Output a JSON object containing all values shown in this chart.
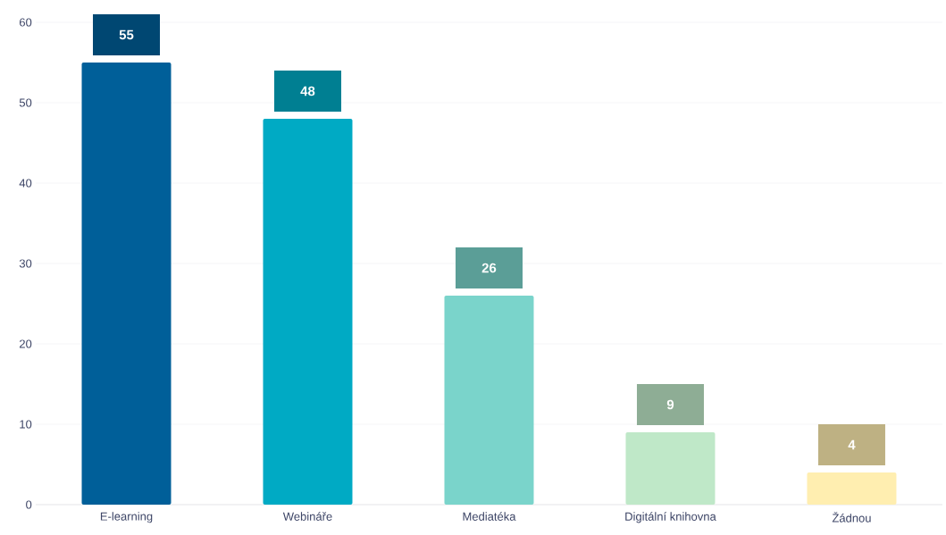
{
  "chart_data": {
    "type": "bar",
    "categories": [
      "E-learning",
      "Webináře",
      "Mediatéka",
      "Digitální knihovna",
      "Žádnou"
    ],
    "values": [
      55,
      48,
      26,
      9,
      4
    ],
    "colors": [
      "#005f99",
      "#00aac4",
      "#7ad4cb",
      "#bfe8c8",
      "#ffeeb0"
    ],
    "ylim": [
      0,
      60
    ],
    "yticks": [
      0,
      10,
      20,
      30,
      40,
      50,
      60
    ],
    "grid": "y",
    "data_labels": true
  }
}
